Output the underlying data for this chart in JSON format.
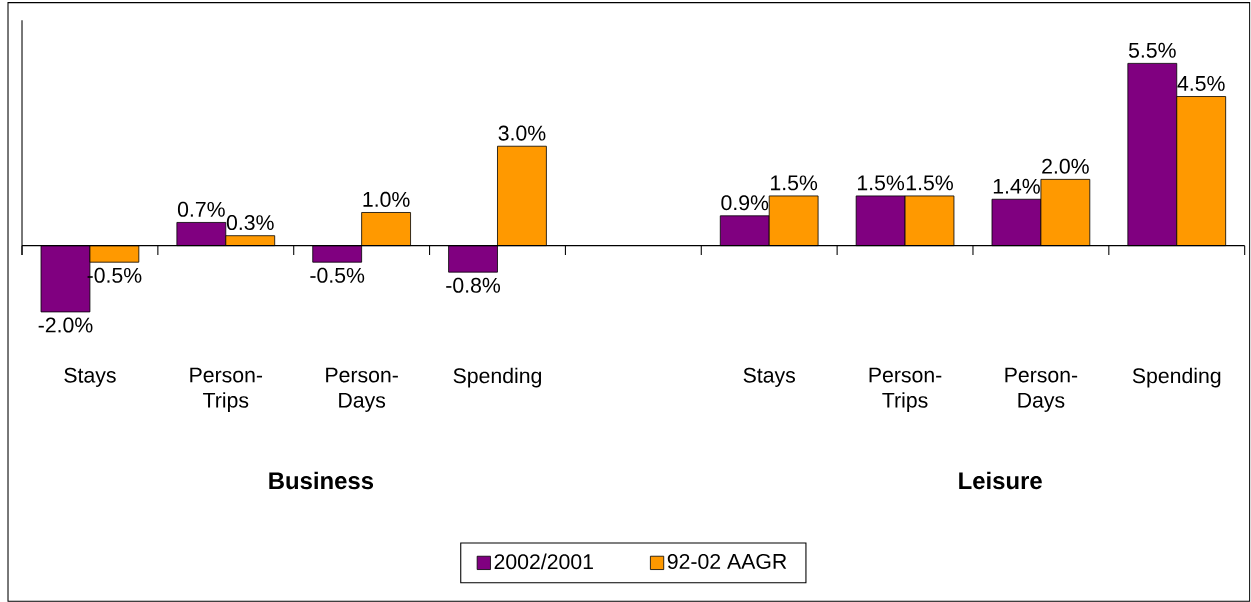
{
  "chart_data": {
    "type": "bar",
    "categories": [
      "Stays",
      "Person-Trips",
      "Person-Days",
      "Spending",
      null,
      "Stays",
      "Person-Trips",
      "Person-Days",
      "Spending"
    ],
    "series": [
      {
        "name": "2002/2001",
        "color": "#800080",
        "values": [
          -2.0,
          0.7,
          -0.5,
          -0.8,
          null,
          0.9,
          1.5,
          1.4,
          5.5
        ],
        "value_labels": [
          "-2.0%",
          "0.7%",
          "-0.5%",
          "-0.8%",
          null,
          "0.9%",
          "1.5%",
          "1.4%",
          "5.5%"
        ]
      },
      {
        "name": "92-02 AAGR",
        "color": "#ff9900",
        "values": [
          -0.5,
          0.3,
          1.0,
          3.0,
          null,
          1.5,
          1.5,
          2.0,
          4.5
        ],
        "value_labels": [
          "-0.5%",
          "0.3%",
          "1.0%",
          "3.0%",
          null,
          "1.5%",
          "1.5%",
          "2.0%",
          "4.5%"
        ]
      }
    ],
    "annotations": [
      "Business",
      "Leisure"
    ],
    "legend": "bottom"
  }
}
